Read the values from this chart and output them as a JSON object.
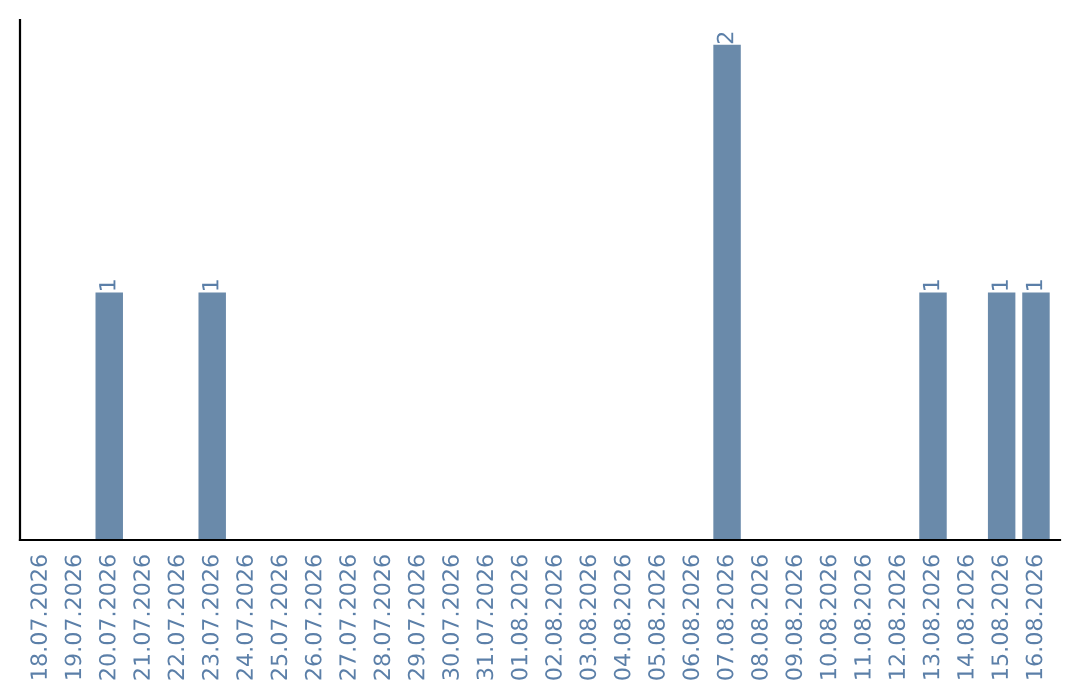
{
  "chart_data": {
    "type": "bar",
    "categories": [
      "18.07.2026",
      "19.07.2026",
      "20.07.2026",
      "21.07.2026",
      "22.07.2026",
      "23.07.2026",
      "24.07.2026",
      "25.07.2026",
      "26.07.2026",
      "27.07.2026",
      "28.07.2026",
      "29.07.2026",
      "30.07.2026",
      "31.07.2026",
      "01.08.2026",
      "02.08.2026",
      "03.08.2026",
      "04.08.2026",
      "05.08.2026",
      "06.08.2026",
      "07.08.2026",
      "08.08.2026",
      "09.08.2026",
      "10.08.2026",
      "11.08.2026",
      "12.08.2026",
      "13.08.2026",
      "14.08.2026",
      "15.08.2026",
      "16.08.2026"
    ],
    "values": [
      0,
      0,
      1,
      0,
      0,
      1,
      0,
      0,
      0,
      0,
      0,
      0,
      0,
      0,
      0,
      0,
      0,
      0,
      0,
      0,
      2,
      0,
      0,
      0,
      0,
      0,
      1,
      0,
      1,
      1
    ],
    "value_labels": [
      null,
      null,
      "1",
      null,
      null,
      "1",
      null,
      null,
      null,
      null,
      null,
      null,
      null,
      null,
      null,
      null,
      null,
      null,
      null,
      null,
      "2",
      null,
      null,
      null,
      null,
      null,
      "1",
      null,
      "1",
      "1"
    ],
    "color": "#6a8aaa",
    "tick_labels": "x",
    "grid": false,
    "legend": false
  }
}
